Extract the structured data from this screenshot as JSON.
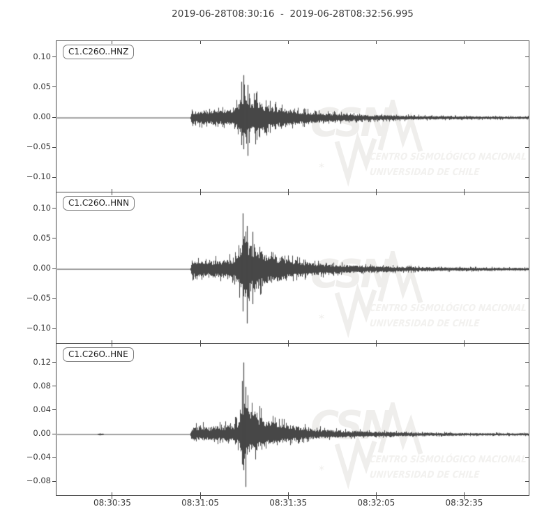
{
  "title": {
    "text": "2019-06-28T08:30:16  -  2019-06-28T08:32:56.995"
  },
  "watermark": {
    "logo": "CSN",
    "line1": "CENTRO SISMOLÓGICO NACIONAL",
    "line2": "UNIVERSIDAD DE CHILE"
  },
  "colors": {
    "trace": "#474747",
    "axis": "#4a4a4a",
    "tick_label": "#3a3a3a",
    "watermark_logo": "#efeeec",
    "watermark_text": "#f2f1ef"
  },
  "chart_data": {
    "type": "line",
    "title": "2019-06-28T08:30:16  -  2019-06-28T08:32:56.995",
    "x_axis": {
      "start": "2019-06-28T08:30:16",
      "end": "2019-06-28T08:32:56.995",
      "duration_s": 160.995,
      "tick_seconds": [
        19,
        49,
        79,
        109,
        139
      ],
      "tick_labels": [
        "08:30:35",
        "08:31:05",
        "08:31:35",
        "08:32:05",
        "08:32:35"
      ]
    },
    "envelope_t": [
      0,
      13.5,
      14.5,
      16,
      45.3,
      45.7,
      46.5,
      48,
      50,
      52,
      54,
      56,
      58,
      60,
      61.5,
      62.6,
      63.6,
      64.6,
      66,
      67.5,
      69,
      71,
      74,
      77,
      80,
      84,
      88,
      93,
      99,
      106,
      115,
      126,
      140,
      161
    ],
    "panels": [
      {
        "label": "C1.C26O..HNZ",
        "ylim": [
          -0.124,
          0.1265
        ],
        "yticks": [
          {
            "v": 0.1,
            "label": "0.10"
          },
          {
            "v": 0.05,
            "label": "0.05"
          },
          {
            "v": 0.0,
            "label": "0.00"
          },
          {
            "v": -0.05,
            "label": "−0.05"
          },
          {
            "v": -0.1,
            "label": "−0.10"
          }
        ],
        "peak_amplitude": 0.07,
        "onset_s": 45.5,
        "neg_scale": 0.9,
        "seed": 101,
        "envelope_a": [
          0.0007,
          0.0007,
          0.0007,
          0.0007,
          0.0007,
          0.016,
          0.02,
          0.017,
          0.021,
          0.018,
          0.022,
          0.019,
          0.024,
          0.022,
          0.034,
          0.052,
          0.07,
          0.058,
          0.048,
          0.052,
          0.04,
          0.034,
          0.029,
          0.025,
          0.021,
          0.017,
          0.014,
          0.012,
          0.01,
          0.008,
          0.0065,
          0.005,
          0.004,
          0.0035
        ],
        "spikes": [
          {
            "t": 62.8,
            "up": 0.06,
            "down": 0.045
          },
          {
            "t": 63.4,
            "up": 0.071,
            "down": 0.052
          },
          {
            "t": 64.9,
            "up": 0.055,
            "down": 0.063
          }
        ]
      },
      {
        "label": "C1.C26O..HNN",
        "ylim": [
          -0.124,
          0.1265
        ],
        "yticks": [
          {
            "v": 0.1,
            "label": "0.10"
          },
          {
            "v": 0.05,
            "label": "0.05"
          },
          {
            "v": 0.0,
            "label": "0.00"
          },
          {
            "v": -0.05,
            "label": "−0.05"
          },
          {
            "v": -0.1,
            "label": "−0.10"
          }
        ],
        "peak_amplitude": 0.094,
        "onset_s": 45.5,
        "neg_scale": 0.95,
        "seed": 202,
        "envelope_a": [
          0.0007,
          0.0007,
          0.0007,
          0.0007,
          0.0007,
          0.018,
          0.022,
          0.019,
          0.023,
          0.02,
          0.024,
          0.022,
          0.027,
          0.026,
          0.04,
          0.066,
          0.094,
          0.078,
          0.062,
          0.065,
          0.05,
          0.042,
          0.035,
          0.03,
          0.025,
          0.02,
          0.016,
          0.013,
          0.011,
          0.009,
          0.007,
          0.0055,
          0.0045,
          0.0035
        ],
        "spikes": [
          {
            "t": 63.2,
            "up": 0.093,
            "down": 0.07
          },
          {
            "t": 64.6,
            "up": 0.072,
            "down": 0.09
          },
          {
            "t": 66.5,
            "up": 0.062,
            "down": 0.058
          }
        ]
      },
      {
        "label": "C1.C26O..HNE",
        "ylim": [
          -0.103,
          0.1513
        ],
        "yticks": [
          {
            "v": 0.12,
            "label": "0.12"
          },
          {
            "v": 0.08,
            "label": "0.08"
          },
          {
            "v": 0.04,
            "label": "0.04"
          },
          {
            "v": 0.0,
            "label": "0.00"
          },
          {
            "v": -0.04,
            "label": "−0.04"
          },
          {
            "v": -0.08,
            "label": "−0.08"
          }
        ],
        "peak_amplitude": 0.12,
        "onset_s": 45.5,
        "neg_scale": 0.75,
        "seed": 303,
        "envelope_a": [
          0.0007,
          0.0007,
          0.004,
          0.0007,
          0.0007,
          0.017,
          0.021,
          0.018,
          0.022,
          0.019,
          0.023,
          0.021,
          0.026,
          0.024,
          0.038,
          0.06,
          0.088,
          0.074,
          0.06,
          0.063,
          0.048,
          0.04,
          0.033,
          0.028,
          0.024,
          0.019,
          0.015,
          0.012,
          0.01,
          0.008,
          0.0065,
          0.005,
          0.004,
          0.0035
        ],
        "spikes": [
          {
            "t": 62.9,
            "up": 0.09,
            "down": 0.05
          },
          {
            "t": 63.6,
            "up": 0.121,
            "down": 0.06
          },
          {
            "t": 64.2,
            "up": 0.08,
            "down": 0.088
          }
        ]
      }
    ]
  }
}
